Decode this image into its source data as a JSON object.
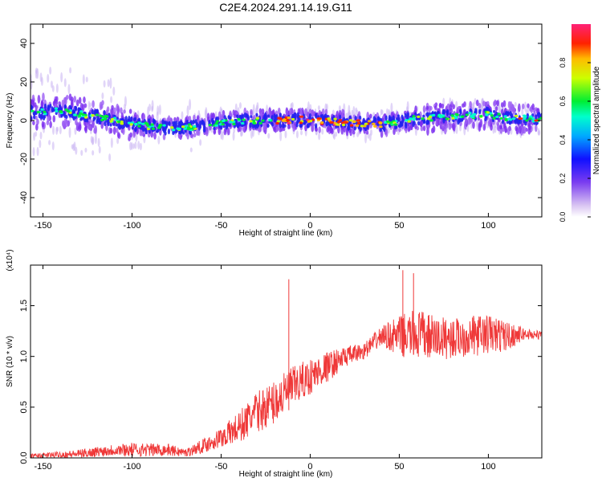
{
  "title": "C2E4.2024.291.14.19.G11",
  "chart_data": [
    {
      "type": "heatmap",
      "name": "spectrogram",
      "xlabel": "Height of straight line (km)",
      "ylabel": "Frequency (Hz)",
      "xlim": [
        -157,
        130
      ],
      "ylim": [
        -50,
        50
      ],
      "xticks": [
        -150,
        -100,
        -50,
        0,
        50,
        100
      ],
      "yticks": [
        -40,
        -20,
        0,
        20,
        40
      ],
      "colorbar": {
        "label": "Normalized spectral amplitude",
        "range": [
          0,
          1
        ],
        "ticks": [
          0.0,
          0.2,
          0.4,
          0.6,
          0.8
        ]
      },
      "ridge_center_hz": {
        "x": [
          -155,
          -140,
          -120,
          -100,
          -80,
          -60,
          -40,
          -20,
          0,
          20,
          40,
          60,
          80,
          100,
          115,
          130
        ],
        "y": [
          4,
          5,
          2,
          -2,
          -4,
          -3,
          0,
          0,
          0,
          -1,
          -2,
          1,
          2,
          3,
          1,
          1
        ]
      }
    },
    {
      "type": "line",
      "name": "snr",
      "xlabel": "Height of straight line (km)",
      "ylabel": "SNR (10 * v/v)",
      "scale_label": "(x10⁴)",
      "color": "#ef3838",
      "xlim": [
        -157,
        130
      ],
      "ylim": [
        0,
        1.9
      ],
      "xticks": [
        -150,
        -100,
        -50,
        0,
        50,
        100
      ],
      "yticks": [
        0.0,
        0.5,
        1.0,
        1.5
      ],
      "envelope": {
        "x": [
          -157,
          -130,
          -110,
          -100,
          -80,
          -70,
          -60,
          -50,
          -40,
          -30,
          -20,
          -10,
          0,
          10,
          20,
          30,
          40,
          50,
          60,
          70,
          80,
          90,
          100,
          110,
          120,
          130
        ],
        "mean": [
          0.02,
          0.04,
          0.08,
          0.08,
          0.08,
          0.05,
          0.12,
          0.2,
          0.3,
          0.45,
          0.55,
          0.7,
          0.8,
          0.9,
          1.0,
          1.05,
          1.2,
          1.2,
          1.22,
          1.18,
          1.18,
          1.2,
          1.22,
          1.2,
          1.22,
          1.21
        ],
        "amplitude": [
          0.02,
          0.04,
          0.06,
          0.07,
          0.06,
          0.04,
          0.07,
          0.1,
          0.16,
          0.2,
          0.22,
          0.2,
          0.18,
          0.15,
          0.1,
          0.08,
          0.1,
          0.2,
          0.25,
          0.22,
          0.2,
          0.2,
          0.2,
          0.15,
          0.06,
          0.04
        ]
      },
      "spikes": [
        {
          "x": -12,
          "y": 1.76
        },
        {
          "x": 52,
          "y": 1.85
        },
        {
          "x": 58,
          "y": 1.82
        }
      ]
    }
  ]
}
